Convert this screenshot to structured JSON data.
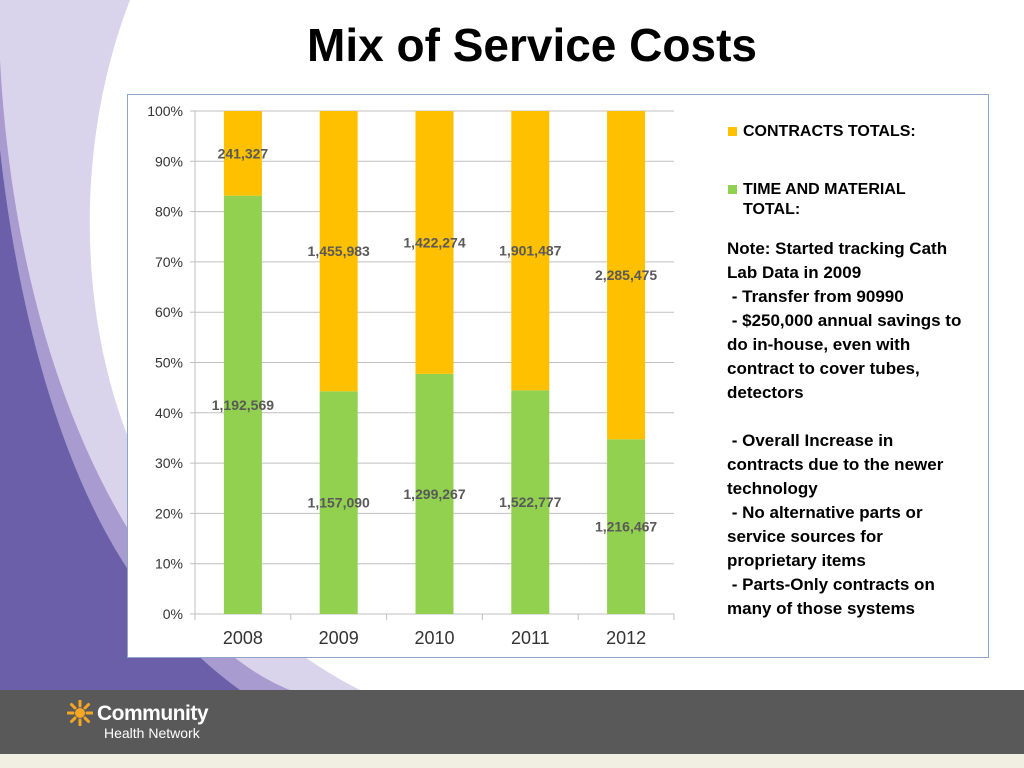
{
  "slide": {
    "title": "Mix of Service Costs",
    "note": "Note: Started tracking Cath Lab Data in 2009\n - Transfer from 90990\n - $250,000 annual savings to do in-house, even with contract to cover tubes, detectors\n\n - Overall Increase in contracts due to the newer technology\n - No alternative parts or service sources for proprietary items\n - Parts-Only contracts on many of those systems"
  },
  "colors": {
    "contracts": "#ffc000",
    "time_material": "#92d050",
    "deco_purple_light": "#a79bd0",
    "deco_purple_dark": "#6c5fa9",
    "footer": "#595959",
    "logo_orange": "#f5a623"
  },
  "logo": {
    "line1": "Community",
    "line2": "Health Network",
    "icon": "sunburst-logo-icon"
  },
  "chart_data": {
    "type": "bar",
    "stacked": "100%",
    "categories": [
      "2008",
      "2009",
      "2010",
      "2011",
      "2012"
    ],
    "series": [
      {
        "name": "TIME AND MATERIAL TOTAL:",
        "values": [
          1192569,
          1157090,
          1299267,
          1522777,
          1216467
        ],
        "labels": [
          "1,192,569",
          "1,157,090",
          "1,299,267",
          "1,522,777",
          "1,216,467"
        ]
      },
      {
        "name": "CONTRACTS TOTALS:",
        "values": [
          241327,
          1455983,
          1422274,
          1901487,
          2285475
        ],
        "labels": [
          "241,327",
          "1,455,983",
          "1,422,274",
          "1,901,487",
          "2,285,475"
        ]
      }
    ],
    "yticks": [
      "0%",
      "10%",
      "20%",
      "30%",
      "40%",
      "50%",
      "60%",
      "70%",
      "80%",
      "90%",
      "100%"
    ],
    "ylim": [
      0,
      100
    ],
    "grid": true,
    "legend_position": "right",
    "legend_order": [
      "CONTRACTS TOTALS:",
      "TIME AND MATERIAL TOTAL:"
    ]
  }
}
